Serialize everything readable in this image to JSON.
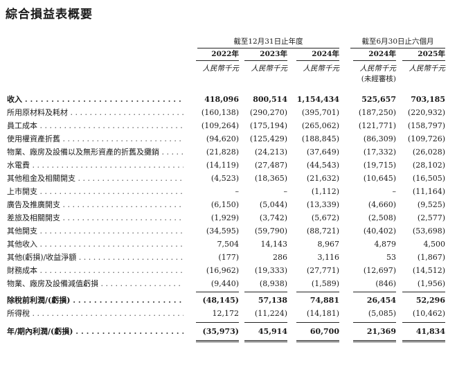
{
  "title": "綜合損益表概要",
  "groups": [
    {
      "label": "截至12月31日止年度"
    },
    {
      "label": "截至6月30日止六個月"
    }
  ],
  "columns": [
    {
      "year": "2022年",
      "unit": "人民幣千元",
      "note": ""
    },
    {
      "year": "2023年",
      "unit": "人民幣千元",
      "note": ""
    },
    {
      "year": "2024年",
      "unit": "人民幣千元",
      "note": ""
    },
    {
      "year": "2024年",
      "unit": "人民幣千元",
      "note": "(未經審核)"
    },
    {
      "year": "2025年",
      "unit": "人民幣千元",
      "note": ""
    }
  ],
  "rows": [
    {
      "label": "收入",
      "values": [
        "418,096",
        "800,514",
        "1,154,434",
        "525,657",
        "703,185"
      ],
      "bold": true
    },
    {
      "label": "所用原材料及耗材",
      "values": [
        "(160,138)",
        "(290,270)",
        "(395,701)",
        "(187,250)",
        "(220,932)"
      ]
    },
    {
      "label": "員工成本",
      "values": [
        "(109,264)",
        "(175,194)",
        "(265,062)",
        "(121,771)",
        "(158,797)"
      ]
    },
    {
      "label": "使用權資產折舊",
      "values": [
        "(94,620)",
        "(125,429)",
        "(188,845)",
        "(86,309)",
        "(109,726)"
      ]
    },
    {
      "label": "物業、廠房及設備以及無形資產的折舊及攤銷",
      "values": [
        "(21,828)",
        "(24,213)",
        "(37,649)",
        "(17,332)",
        "(26,028)"
      ]
    },
    {
      "label": "水電費",
      "values": [
        "(14,119)",
        "(27,487)",
        "(44,543)",
        "(19,715)",
        "(28,102)"
      ]
    },
    {
      "label": "其他租金及相關開支",
      "values": [
        "(4,523)",
        "(18,365)",
        "(21,632)",
        "(10,645)",
        "(16,505)"
      ]
    },
    {
      "label": "上市開支",
      "values": [
        "–",
        "–",
        "(1,112)",
        "–",
        "(11,164)"
      ]
    },
    {
      "label": "廣告及推廣開支",
      "values": [
        "(6,150)",
        "(5,044)",
        "(13,339)",
        "(4,660)",
        "(9,525)"
      ]
    },
    {
      "label": "差旅及相關開支",
      "values": [
        "(1,929)",
        "(3,742)",
        "(5,672)",
        "(2,508)",
        "(2,577)"
      ]
    },
    {
      "label": "其他開支",
      "values": [
        "(34,595)",
        "(59,790)",
        "(88,721)",
        "(40,402)",
        "(53,698)"
      ]
    },
    {
      "label": "其他收入",
      "values": [
        "7,504",
        "14,143",
        "8,967",
        "4,879",
        "4,500"
      ]
    },
    {
      "label": "其他(虧損)/收益淨額",
      "values": [
        "(177)",
        "286",
        "3,116",
        "53",
        "(1,867)"
      ]
    },
    {
      "label": "財務成本",
      "values": [
        "(16,962)",
        "(19,333)",
        "(27,771)",
        "(12,697)",
        "(14,512)"
      ]
    },
    {
      "label": "物業、廠房及設備減值虧損",
      "values": [
        "(9,440)",
        "(8,938)",
        "(1,589)",
        "(846)",
        "(1,956)"
      ]
    },
    {
      "label": "除稅前利潤/(虧損)",
      "values": [
        "(48,145)",
        "57,138",
        "74,881",
        "26,454",
        "52,296"
      ],
      "bold": true
    },
    {
      "label": "所得稅",
      "values": [
        "12,172",
        "(11,224)",
        "(14,181)",
        "(5,085)",
        "(10,462)"
      ]
    },
    {
      "label": "年/期內利潤/(虧損)",
      "values": [
        "(35,973)",
        "45,914",
        "60,700",
        "21,369",
        "41,834"
      ],
      "bold": true
    }
  ]
}
